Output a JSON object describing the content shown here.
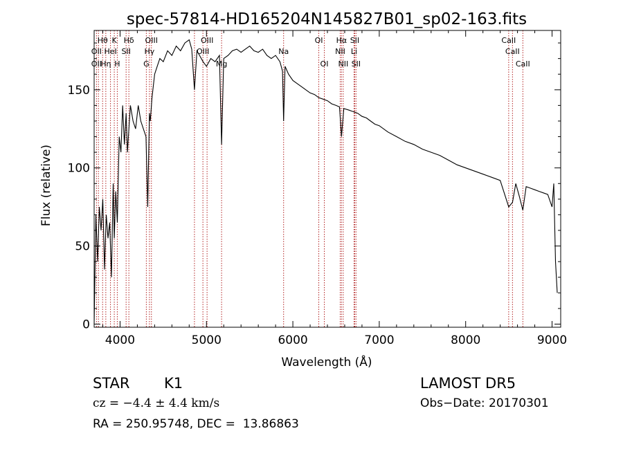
{
  "chart_data": {
    "type": "line",
    "title": "spec-57814-HD165204N145827B01_sp02-163.fits",
    "xlabel": "Wavelength (Å)",
    "ylabel": "Flux (relative)",
    "xlim": [
      3700,
      9100
    ],
    "ylim": [
      -2,
      188
    ],
    "xticks": [
      4000,
      5000,
      6000,
      7000,
      8000,
      9000
    ],
    "xtick_labels": [
      "4000",
      "5000",
      "6000",
      "7000",
      "8000",
      "9000"
    ],
    "yticks": [
      0,
      50,
      100,
      150
    ],
    "ytick_labels": [
      "0",
      "50",
      "100",
      "150"
    ],
    "grid": false,
    "series": [
      {
        "x": [
          3700,
          3720,
          3740,
          3760,
          3780,
          3800,
          3820,
          3840,
          3860,
          3880,
          3900,
          3920,
          3933,
          3950,
          3968,
          3990,
          4010,
          4030,
          4050,
          4070,
          4085,
          4102,
          4120,
          4150,
          4180,
          4210,
          4240,
          4270,
          4300,
          4320,
          4340,
          4350,
          4370,
          4400,
          4430,
          4460,
          4500,
          4550,
          4600,
          4650,
          4700,
          4750,
          4800,
          4830,
          4861,
          4890,
          4920,
          4960,
          5000,
          5050,
          5100,
          5150,
          5175,
          5200,
          5250,
          5300,
          5350,
          5400,
          5450,
          5500,
          5550,
          5600,
          5650,
          5700,
          5750,
          5800,
          5850,
          5880,
          5893,
          5910,
          5950,
          6000,
          6050,
          6100,
          6150,
          6200,
          6250,
          6300,
          6350,
          6400,
          6450,
          6500,
          6540,
          6563,
          6590,
          6650,
          6700,
          6750,
          6800,
          6850,
          6900,
          6950,
          7000,
          7100,
          7200,
          7300,
          7400,
          7500,
          7600,
          7700,
          7800,
          7900,
          8000,
          8100,
          8200,
          8300,
          8400,
          8498,
          8542,
          8580,
          8620,
          8662,
          8700,
          8750,
          8800,
          8850,
          8900,
          8950,
          9000,
          9020,
          9040,
          9060
        ],
        "values": [
          0,
          70,
          40,
          75,
          60,
          80,
          35,
          70,
          55,
          65,
          30,
          90,
          55,
          85,
          65,
          120,
          110,
          140,
          115,
          135,
          110,
          125,
          140,
          130,
          125,
          140,
          130,
          125,
          120,
          75,
          135,
          130,
          145,
          160,
          165,
          170,
          168,
          175,
          172,
          178,
          175,
          180,
          182,
          176,
          150,
          175,
          172,
          168,
          165,
          170,
          168,
          172,
          115,
          170,
          172,
          175,
          176,
          174,
          176,
          178,
          175,
          174,
          176,
          172,
          170,
          172,
          168,
          162,
          130,
          165,
          160,
          156,
          154,
          152,
          150,
          148,
          147,
          145,
          144,
          143,
          141,
          140,
          139,
          120,
          138,
          137,
          136,
          135,
          133,
          132,
          130,
          128,
          127,
          123,
          120,
          117,
          115,
          112,
          110,
          108,
          105,
          102,
          100,
          98,
          96,
          94,
          92,
          75,
          78,
          90,
          82,
          73,
          88,
          87,
          86,
          85,
          84,
          83,
          75,
          90,
          40,
          20
        ]
      }
    ],
    "annotations": [
      {
        "label": "Hθ",
        "x": 3798,
        "row": 1
      },
      {
        "label": "K",
        "x": 3933,
        "row": 1
      },
      {
        "label": "Hδ",
        "x": 4102,
        "row": 1
      },
      {
        "label": "OIII",
        "x": 4363,
        "row": 1
      },
      {
        "label": "OIII",
        "x": 5007,
        "row": 1
      },
      {
        "label": "OI",
        "x": 6300,
        "row": 1
      },
      {
        "label": "Hα",
        "x": 6563,
        "row": 1
      },
      {
        "label": "SII",
        "x": 6716,
        "row": 1
      },
      {
        "label": "CaII",
        "x": 8498,
        "row": 1
      },
      {
        "label": "OII",
        "x": 3727,
        "row": 2
      },
      {
        "label": "HeI",
        "x": 3889,
        "row": 2
      },
      {
        "label": "SII",
        "x": 4070,
        "row": 2
      },
      {
        "label": "Hγ",
        "x": 4340,
        "row": 2
      },
      {
        "label": "OIII",
        "x": 4959,
        "row": 2
      },
      {
        "label": "Na",
        "x": 5893,
        "row": 2
      },
      {
        "label": "NII",
        "x": 6548,
        "row": 2
      },
      {
        "label": "Li",
        "x": 6708,
        "row": 2
      },
      {
        "label": "CaII",
        "x": 8542,
        "row": 2
      },
      {
        "label": "OII",
        "x": 3727,
        "row": 3
      },
      {
        "label": "Hη",
        "x": 3835,
        "row": 3
      },
      {
        "label": "H",
        "x": 3968,
        "row": 3
      },
      {
        "label": "G",
        "x": 4304,
        "row": 3
      },
      {
        "label": "Mg",
        "x": 5175,
        "row": 3
      },
      {
        "label": "OI",
        "x": 6364,
        "row": 3
      },
      {
        "label": "NII",
        "x": 6583,
        "row": 3
      },
      {
        "label": "SII",
        "x": 6731,
        "row": 3
      },
      {
        "label": "CaII",
        "x": 8662,
        "row": 3
      }
    ],
    "line_markers": [
      3727,
      3750,
      3798,
      3835,
      3889,
      3933,
      3968,
      4070,
      4102,
      4304,
      4340,
      4363,
      4861,
      4959,
      5007,
      5175,
      5893,
      6300,
      6364,
      6548,
      6563,
      6583,
      6708,
      6716,
      6731,
      8498,
      8542,
      8662
    ]
  },
  "info": {
    "object_type": "STAR",
    "subclass": "K1",
    "survey": "LAMOST DR5",
    "cz": "cz = −4.4 ± 4.4 km/s",
    "obs_date": "Obs−Date: 20170301",
    "coords": "RA = 250.95748, DEC =  13.86863"
  },
  "colors": {
    "marker_line": "#b22222",
    "spectrum": "#000000"
  }
}
